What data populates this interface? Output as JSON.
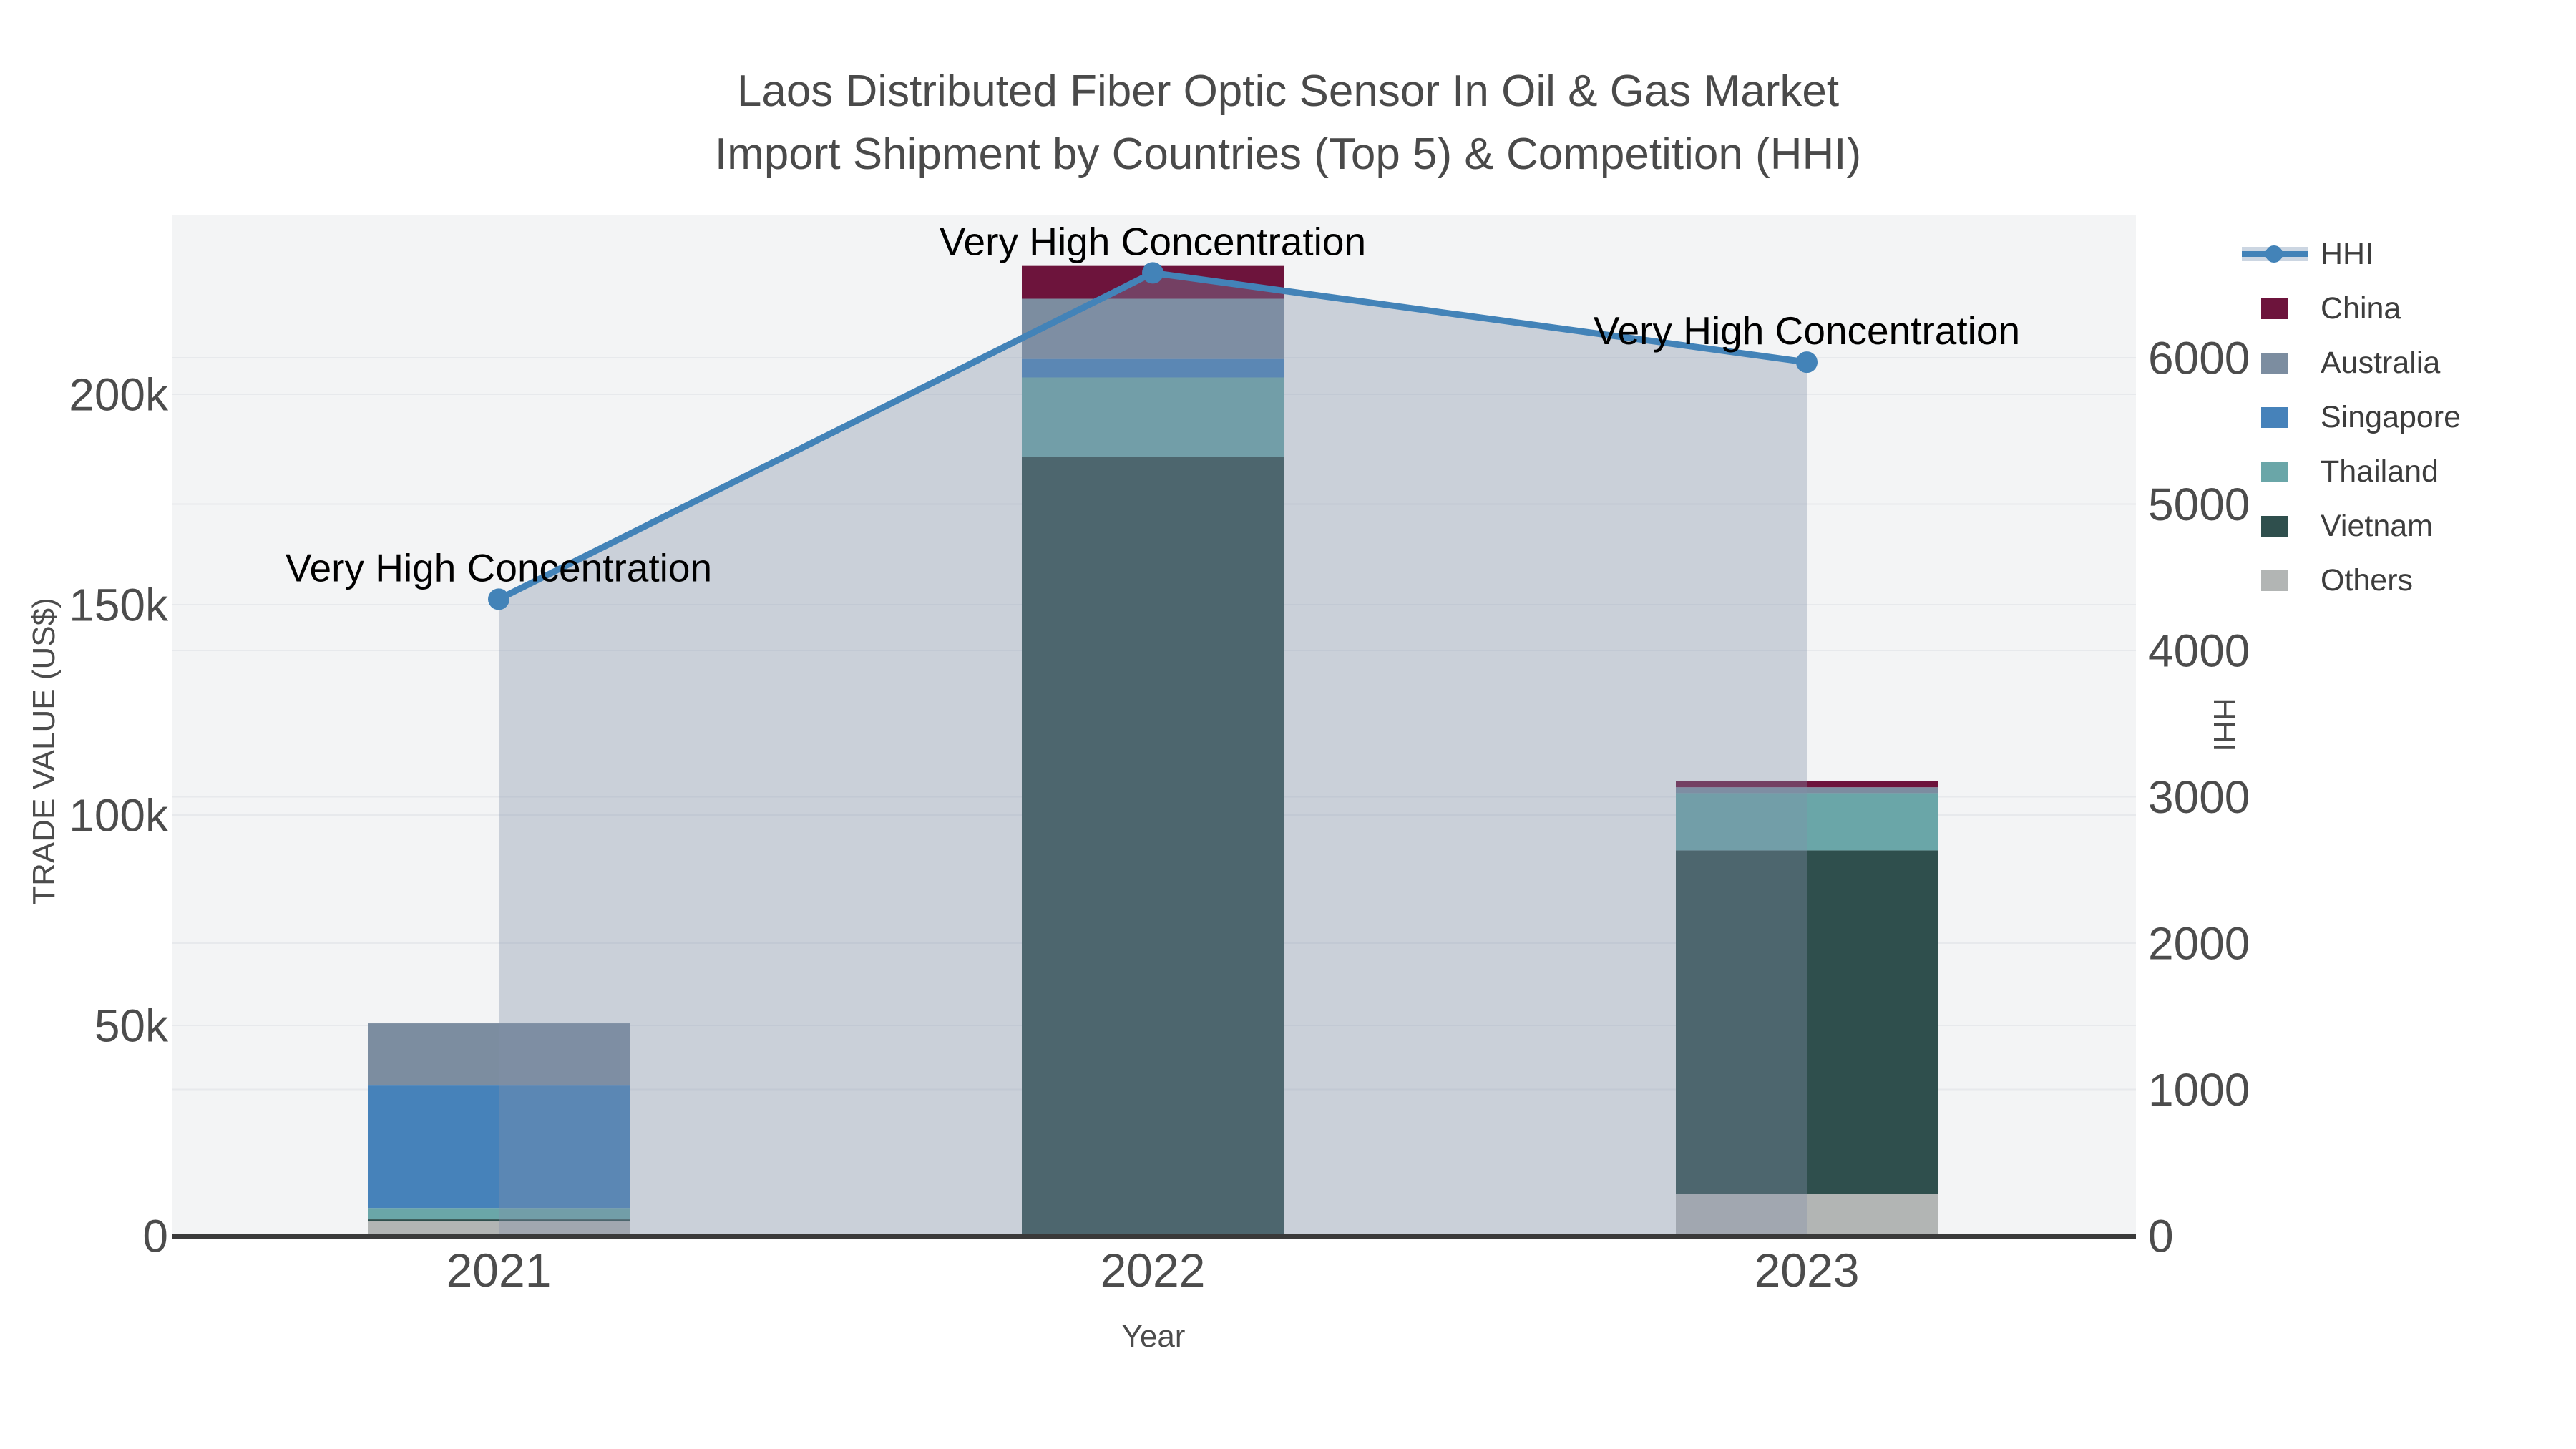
{
  "title": {
    "line1": "Laos Distributed Fiber Optic Sensor In Oil & Gas Market",
    "line2": "Import Shipment by Countries (Top 5) & Competition (HHI)"
  },
  "chart_data": {
    "type": "combo",
    "subtype": "stacked-bar with line+area on secondary axis",
    "categories": [
      "2021",
      "2022",
      "2023"
    ],
    "x_axis": {
      "title": "Year"
    },
    "left_axis": {
      "title": "TRADE VALUE (US$)",
      "tick_labels": [
        "0",
        "50k",
        "100k",
        "150k",
        "200k"
      ],
      "tick_values": [
        0,
        50000,
        100000,
        150000,
        200000
      ],
      "range": [
        0,
        242500
      ]
    },
    "right_axis": {
      "title": "HHI",
      "tick_labels": [
        "0",
        "1000",
        "2000",
        "3000",
        "4000",
        "5000",
        "6000"
      ],
      "tick_values": [
        0,
        1000,
        2000,
        3000,
        4000,
        5000,
        6000
      ],
      "range": [
        0,
        6980
      ]
    },
    "series": [
      {
        "name": "China",
        "color": "#6d143c",
        "values": [
          0,
          7800,
          1500
        ]
      },
      {
        "name": "Australia",
        "color": "#7c8da0",
        "values": [
          14800,
          14300,
          1400
        ]
      },
      {
        "name": "Singapore",
        "color": "#4682ba",
        "values": [
          29100,
          4400,
          0
        ]
      },
      {
        "name": "Thailand",
        "color": "#6aa6a8",
        "values": [
          2700,
          18900,
          13600
        ]
      },
      {
        "name": "Vietnam",
        "color": "#2f4f4d",
        "values": [
          500,
          185100,
          81600
        ]
      },
      {
        "name": "Others",
        "color": "#b2b5b4",
        "values": [
          3400,
          0,
          10000
        ]
      }
    ],
    "stack_order_bottom_to_top": [
      "Others",
      "Vietnam",
      "Thailand",
      "Singapore",
      "Australia",
      "China"
    ],
    "line_series": {
      "name": "HHI",
      "axis": "right",
      "color": "#4383b8",
      "area_fill": "rgba(130,145,168,0.36)",
      "values": [
        4350,
        6580,
        5970
      ]
    },
    "annotations": [
      {
        "text": "Very High Concentration",
        "category": "2021"
      },
      {
        "text": "Very High Concentration",
        "category": "2022"
      },
      {
        "text": "Very High Concentration",
        "category": "2023"
      }
    ],
    "legend_position": "right",
    "grid": true
  },
  "legend": {
    "items": [
      "HHI",
      "China",
      "Australia",
      "Singapore",
      "Thailand",
      "Vietnam",
      "Others"
    ]
  },
  "colors": {
    "page_bg": "#ffffff",
    "plot_bg": "#f3f4f5",
    "grid": "#e7e9ec",
    "axis_line": "#3a3a3a",
    "tick_text": "#4c4c4c",
    "title_text": "#4a4a4a",
    "annotation_text": "#000000",
    "legend_text": "#3d3d3d",
    "hhi_band": "#ccd6e2"
  }
}
